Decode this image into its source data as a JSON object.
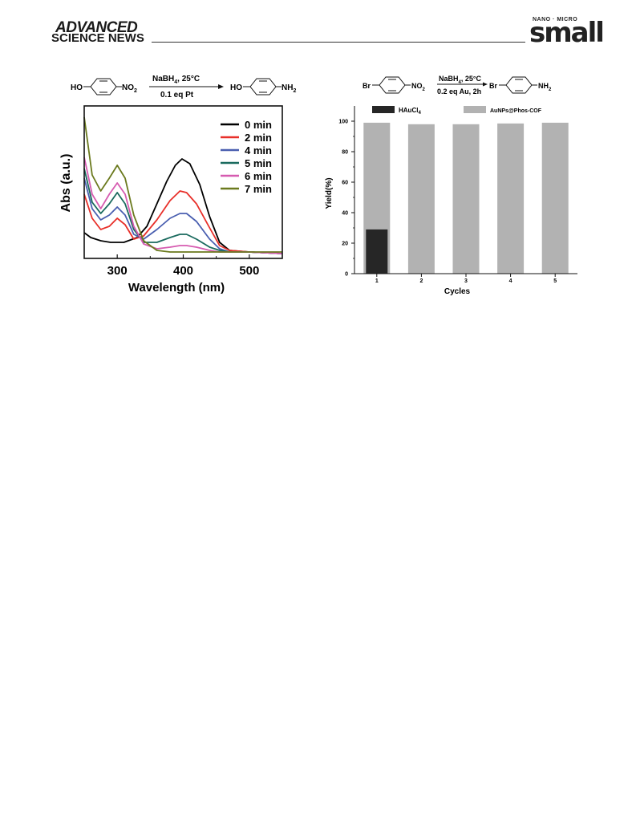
{
  "header": {
    "brand_line1": "ADVANCED",
    "brand_line2": "SCIENCE NEWS",
    "journal_super": "NANO · MICRO",
    "journal_name": "small"
  },
  "left_scheme": {
    "reactant_group_left": "HO",
    "reactant_group_right": "NO",
    "reactant_sub": "2",
    "condition_top": "NaBH",
    "condition_top_sub": "4",
    "condition_top_rest": ", 25°C",
    "condition_bottom": "0.1 eq Pt",
    "product_group_left": "HO",
    "product_group_right": "NH",
    "product_sub": "2"
  },
  "right_scheme": {
    "reactant_group_left": "Br",
    "reactant_group_right": "NO",
    "reactant_sub": "2",
    "condition_top": "NaBH",
    "condition_top_sub": "4",
    "condition_top_rest": ", 25°C",
    "condition_bottom": "0.2 eq Au, 2h",
    "product_group_left": "Br",
    "product_group_right": "NH",
    "product_sub": "2"
  },
  "chart_data": [
    {
      "type": "line",
      "xlabel": "Wavelength (nm)",
      "ylabel": "Abs (a.u.)",
      "xlim": [
        250,
        550
      ],
      "xticks": [
        300,
        400,
        500
      ],
      "legend_position": "top-right",
      "series": [
        {
          "name": "0 min",
          "color": "#000000",
          "points": [
            [
              250,
              0.16
            ],
            [
              260,
              0.13
            ],
            [
              275,
              0.11
            ],
            [
              290,
              0.1
            ],
            [
              310,
              0.1
            ],
            [
              330,
              0.13
            ],
            [
              345,
              0.2
            ],
            [
              360,
              0.34
            ],
            [
              375,
              0.48
            ],
            [
              388,
              0.58
            ],
            [
              398,
              0.62
            ],
            [
              410,
              0.59
            ],
            [
              425,
              0.46
            ],
            [
              440,
              0.26
            ],
            [
              455,
              0.1
            ],
            [
              470,
              0.05
            ],
            [
              500,
              0.04
            ],
            [
              550,
              0.03
            ]
          ]
        },
        {
          "name": "2 min",
          "color": "#e8302a",
          "points": [
            [
              250,
              0.4
            ],
            [
              262,
              0.25
            ],
            [
              275,
              0.18
            ],
            [
              288,
              0.2
            ],
            [
              300,
              0.25
            ],
            [
              312,
              0.21
            ],
            [
              325,
              0.12
            ],
            [
              340,
              0.14
            ],
            [
              360,
              0.24
            ],
            [
              380,
              0.36
            ],
            [
              395,
              0.42
            ],
            [
              405,
              0.41
            ],
            [
              420,
              0.34
            ],
            [
              440,
              0.19
            ],
            [
              455,
              0.08
            ],
            [
              470,
              0.05
            ],
            [
              500,
              0.04
            ],
            [
              550,
              0.03
            ]
          ]
        },
        {
          "name": "4 min",
          "color": "#4a5fb0",
          "points": [
            [
              250,
              0.5
            ],
            [
              262,
              0.31
            ],
            [
              275,
              0.24
            ],
            [
              288,
              0.27
            ],
            [
              300,
              0.32
            ],
            [
              312,
              0.27
            ],
            [
              325,
              0.15
            ],
            [
              340,
              0.12
            ],
            [
              360,
              0.18
            ],
            [
              380,
              0.25
            ],
            [
              395,
              0.28
            ],
            [
              405,
              0.28
            ],
            [
              420,
              0.23
            ],
            [
              440,
              0.12
            ],
            [
              455,
              0.06
            ],
            [
              470,
              0.04
            ],
            [
              500,
              0.04
            ],
            [
              550,
              0.03
            ]
          ]
        },
        {
          "name": "5 min",
          "color": "#1a6a5e",
          "points": [
            [
              250,
              0.56
            ],
            [
              262,
              0.35
            ],
            [
              275,
              0.28
            ],
            [
              288,
              0.34
            ],
            [
              300,
              0.41
            ],
            [
              312,
              0.34
            ],
            [
              325,
              0.18
            ],
            [
              340,
              0.1
            ],
            [
              360,
              0.1
            ],
            [
              380,
              0.13
            ],
            [
              395,
              0.15
            ],
            [
              405,
              0.15
            ],
            [
              420,
              0.12
            ],
            [
              440,
              0.07
            ],
            [
              455,
              0.05
            ],
            [
              470,
              0.04
            ],
            [
              500,
              0.04
            ],
            [
              550,
              0.03
            ]
          ]
        },
        {
          "name": "6 min",
          "color": "#d65bb0",
          "points": [
            [
              250,
              0.63
            ],
            [
              262,
              0.4
            ],
            [
              275,
              0.31
            ],
            [
              288,
              0.4
            ],
            [
              300,
              0.47
            ],
            [
              312,
              0.4
            ],
            [
              325,
              0.2
            ],
            [
              340,
              0.09
            ],
            [
              360,
              0.06
            ],
            [
              380,
              0.07
            ],
            [
              395,
              0.08
            ],
            [
              405,
              0.08
            ],
            [
              420,
              0.07
            ],
            [
              440,
              0.05
            ],
            [
              455,
              0.04
            ],
            [
              470,
              0.04
            ],
            [
              500,
              0.04
            ],
            [
              550,
              0.03
            ]
          ]
        },
        {
          "name": "7 min",
          "color": "#6b7a1e",
          "points": [
            [
              250,
              0.88
            ],
            [
              262,
              0.52
            ],
            [
              275,
              0.42
            ],
            [
              288,
              0.5
            ],
            [
              300,
              0.58
            ],
            [
              312,
              0.5
            ],
            [
              325,
              0.27
            ],
            [
              340,
              0.11
            ],
            [
              360,
              0.05
            ],
            [
              380,
              0.04
            ],
            [
              400,
              0.04
            ],
            [
              420,
              0.04
            ],
            [
              440,
              0.04
            ],
            [
              470,
              0.04
            ],
            [
              500,
              0.04
            ],
            [
              550,
              0.04
            ]
          ]
        }
      ]
    },
    {
      "type": "bar",
      "xlabel": "Cycles",
      "ylabel": "Yield(%)",
      "ylim": [
        0,
        110
      ],
      "yticks": [
        0,
        20,
        40,
        60,
        80,
        100
      ],
      "categories": [
        "1",
        "2",
        "3",
        "4",
        "5"
      ],
      "legend_position": "top",
      "legend_label_HAuCl": "HAuCl",
      "legend_label_HAuCl_sub": "4",
      "series": [
        {
          "name": "AuNPs@Phos-COF",
          "color": "#b2b2b2",
          "values": [
            99,
            98,
            98,
            98.5,
            99
          ]
        },
        {
          "name": "HAuCl4",
          "color": "#262626",
          "values": [
            29,
            null,
            null,
            null,
            null
          ]
        }
      ]
    }
  ]
}
